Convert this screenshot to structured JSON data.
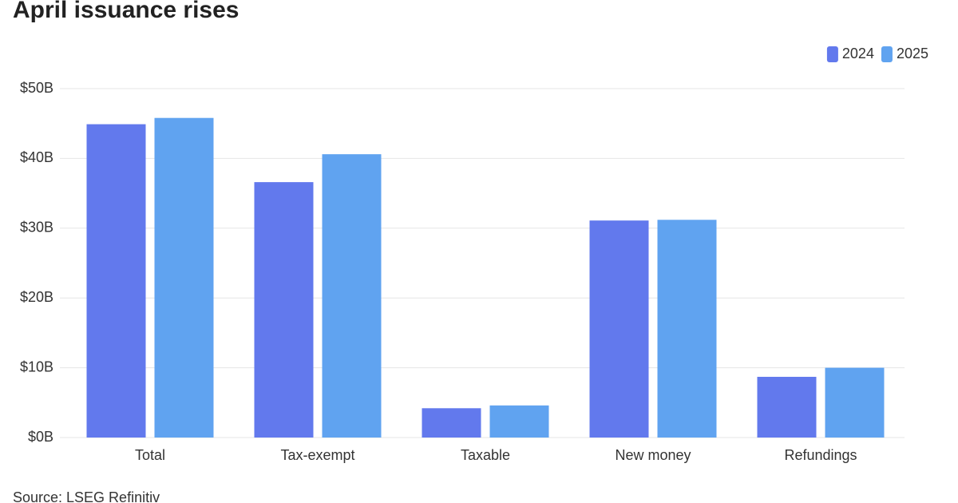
{
  "chart_data": {
    "type": "bar",
    "title": "April issuance rises",
    "categories": [
      "Total",
      "Tax-exempt",
      "Taxable",
      "New money",
      "Refundings"
    ],
    "series": [
      {
        "name": "2024",
        "color": "#6279ed",
        "values": [
          44.9,
          36.6,
          4.2,
          31.1,
          8.7
        ]
      },
      {
        "name": "2025",
        "color": "#60a3f0",
        "values": [
          45.8,
          40.6,
          4.6,
          31.2,
          10.0
        ]
      }
    ],
    "ylim": [
      0,
      50
    ],
    "yticks": [
      {
        "value": 0,
        "label": "$0B"
      },
      {
        "value": 10,
        "label": "$10B"
      },
      {
        "value": 20,
        "label": "$20B"
      },
      {
        "value": 30,
        "label": "$30B"
      },
      {
        "value": 40,
        "label": "$40B"
      },
      {
        "value": 50,
        "label": "$50B"
      }
    ],
    "grid": true,
    "legend": "top-right",
    "source": "Source: LSEG Refinitiv"
  }
}
